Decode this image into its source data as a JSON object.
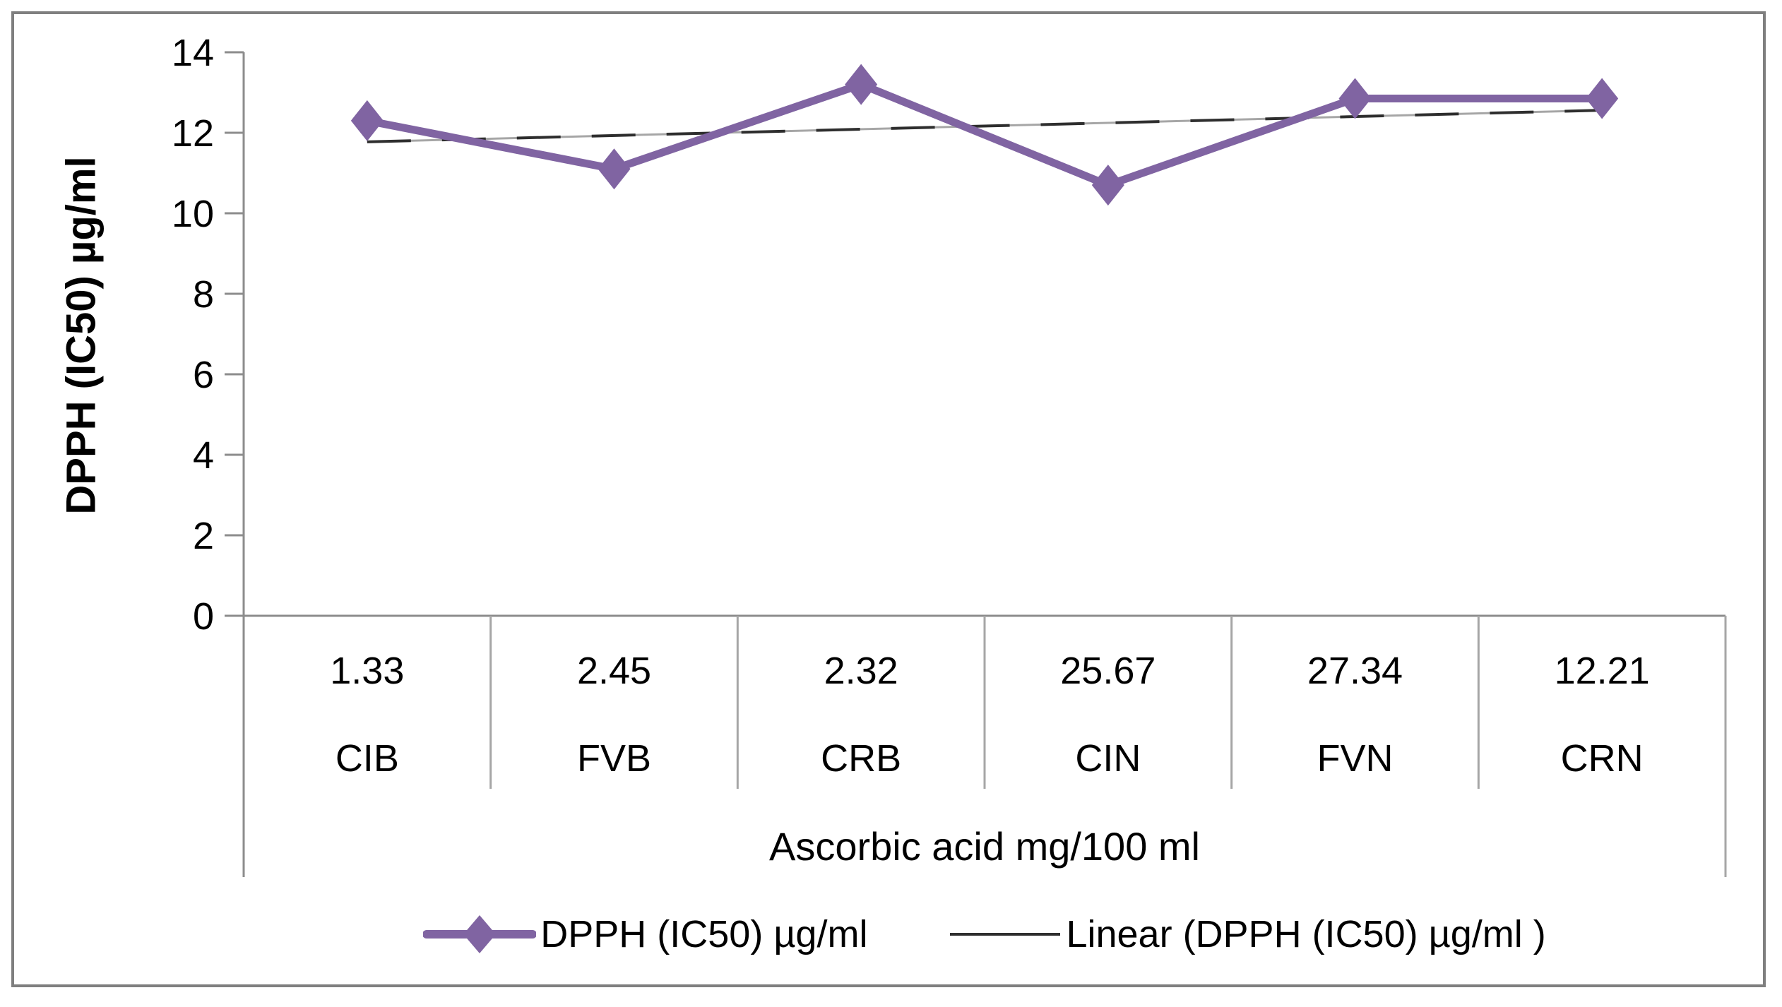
{
  "chart_data": {
    "type": "line",
    "categories": [
      "CIB",
      "FVB",
      "CRB",
      "CIN",
      "FVN",
      "CRN"
    ],
    "category_value_labels": [
      "1.33",
      "2.45",
      "2.32",
      "25.67",
      "27.34",
      "12.21"
    ],
    "series": [
      {
        "name": "DPPH (IC50) µg/ml",
        "values": [
          12.3,
          11.1,
          13.2,
          10.7,
          12.85,
          12.85
        ],
        "color": "#8064A2",
        "marker": "diamond"
      }
    ],
    "trendline": {
      "name": "Linear (DPPH (IC50) µg/ml )",
      "type": "linear",
      "style": "dashed",
      "color": "#2e2e2e"
    },
    "title": "",
    "xlabel": "Ascorbic acid mg/100 ml",
    "ylabel": "DPPH (IC50) µg/ml",
    "ylim": [
      0,
      14
    ],
    "ytick_step": 2,
    "grid": false,
    "legend_position": "bottom"
  },
  "axes": {
    "y_title": "DPPH (IC50) µg/ml",
    "x_title": "Ascorbic acid mg/100 ml",
    "y_ticks": [
      "0",
      "2",
      "4",
      "6",
      "8",
      "10",
      "12",
      "14"
    ]
  },
  "legend": {
    "series_label": "DPPH (IC50) µg/ml",
    "trend_label": "Linear (DPPH (IC50) µg/ml )"
  },
  "colors": {
    "series": "#8064A2",
    "trendline_dark": "#2e2e2e",
    "trendline_light": "#a6a6a6",
    "axis": "#8c8c8c",
    "separator": "#a6a6a6",
    "frame_border": "#7f7f7f",
    "text": "#000000"
  }
}
